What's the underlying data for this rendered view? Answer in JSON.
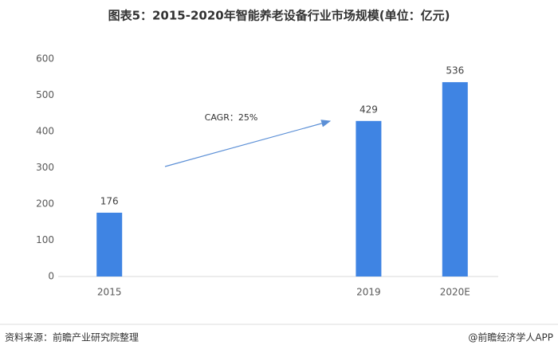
{
  "chart_data": {
    "type": "bar",
    "title": "图表5：2015-2020年智能养老设备行业市场规模(单位：亿元)",
    "categories": [
      "2015",
      null,
      null,
      "2019",
      "2020E"
    ],
    "values": [
      176,
      null,
      null,
      429,
      536
    ],
    "color": "#3f84e3",
    "ylim": [
      0,
      600
    ],
    "yticks": [
      0,
      100,
      200,
      300,
      400,
      500,
      600
    ],
    "grid": false,
    "annotation": "CAGR：25%",
    "source": "资料来源：前瞻产业研究院整理",
    "credit": "@前瞻经济学人APP"
  }
}
